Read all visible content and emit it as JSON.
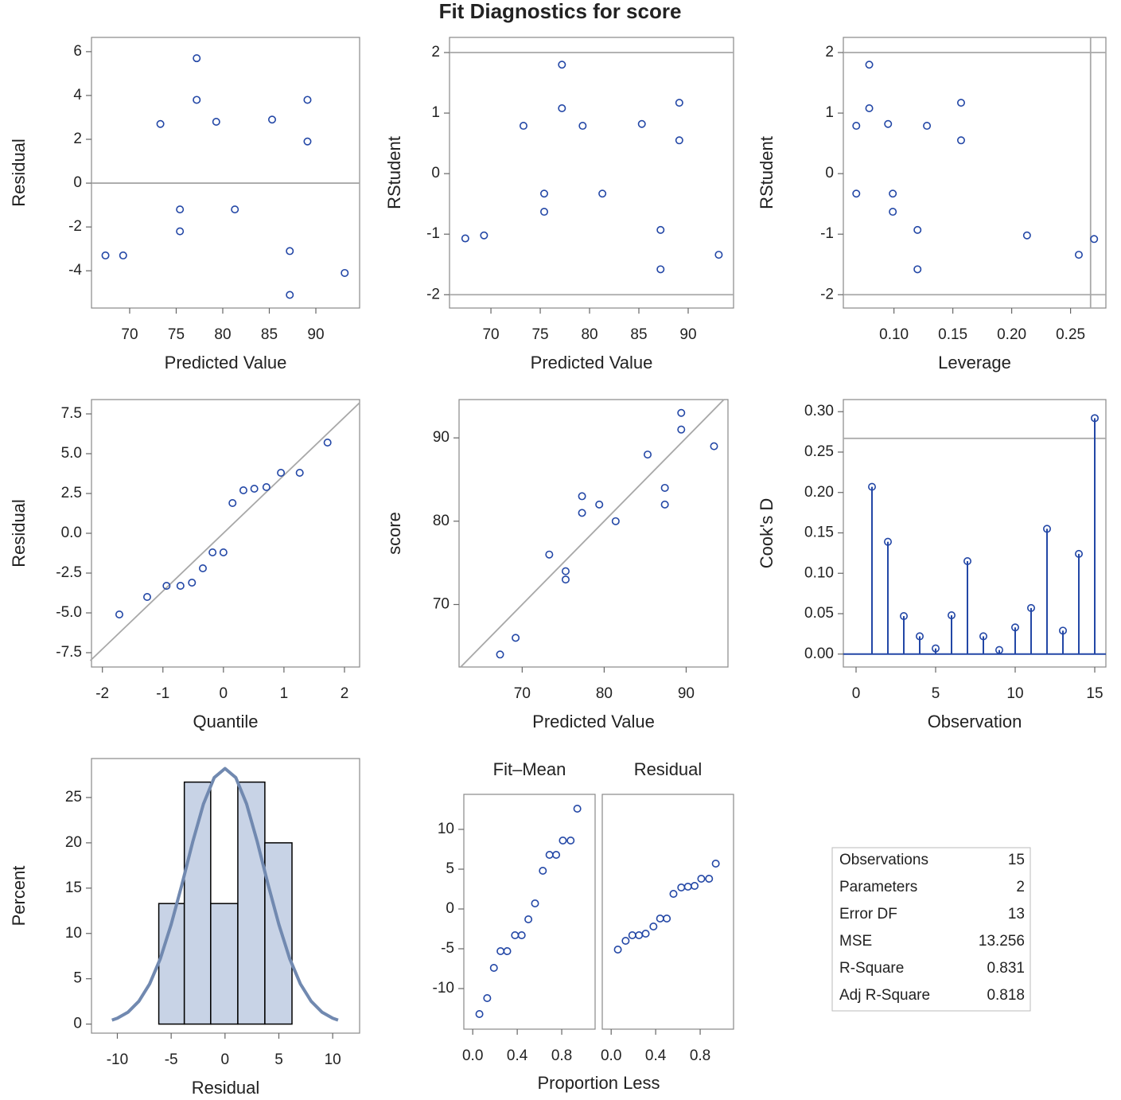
{
  "title": "Fit Diagnostics for score",
  "chart_data": [
    {
      "type": "scatter",
      "x_label": "Predicted Value",
      "y_label": "Residual",
      "x": [
        67.4,
        69.3,
        73.3,
        75.4,
        75.4,
        77.2,
        77.2,
        79.3,
        81.3,
        85.3,
        87.2,
        87.2,
        89.1,
        89.1,
        93.1
      ],
      "y": [
        -3.3,
        -3.3,
        2.7,
        -1.2,
        -2.2,
        5.7,
        3.8,
        2.8,
        -1.2,
        2.9,
        -3.1,
        -5.1,
        3.8,
        1.9,
        -4.1
      ],
      "xlim": [
        65.9,
        94.7
      ],
      "ylim": [
        -5.7,
        6.65
      ],
      "xticks": [
        70,
        75,
        80,
        85,
        90
      ],
      "yticks": [
        -4,
        -2,
        0,
        2,
        4,
        6
      ],
      "reference_lines": {
        "y": [
          0
        ]
      },
      "color": "#2347a6"
    },
    {
      "type": "scatter",
      "x_label": "Predicted Value",
      "y_label": "RStudent",
      "x": [
        67.4,
        69.3,
        73.3,
        75.4,
        75.4,
        77.2,
        77.2,
        79.3,
        81.3,
        85.3,
        87.2,
        87.2,
        89.1,
        89.1,
        93.1
      ],
      "y": [
        -1.07,
        -1.02,
        0.79,
        -0.33,
        -0.63,
        1.8,
        1.08,
        0.79,
        -0.33,
        0.82,
        -0.93,
        -1.58,
        1.17,
        0.55,
        -1.34
      ],
      "xlim": [
        65.8,
        94.6
      ],
      "ylim": [
        -2.22,
        2.25
      ],
      "xticks": [
        70,
        75,
        80,
        85,
        90
      ],
      "yticks": [
        -2,
        -1,
        0,
        1,
        2
      ],
      "reference_lines": {
        "y": [
          -2,
          2
        ]
      },
      "color": "#2347a6"
    },
    {
      "type": "scatter",
      "x_label": "Leverage",
      "y_label": "RStudent",
      "x": [
        0.068,
        0.068,
        0.079,
        0.079,
        0.095,
        0.099,
        0.099,
        0.12,
        0.12,
        0.128,
        0.157,
        0.157,
        0.213,
        0.257,
        0.27
      ],
      "y": [
        0.79,
        -0.33,
        1.8,
        1.08,
        0.82,
        -0.33,
        -0.63,
        -0.93,
        -1.58,
        0.79,
        1.17,
        0.55,
        -1.02,
        -1.34,
        -1.08
      ],
      "xlim": [
        0.057,
        0.28
      ],
      "ylim": [
        -2.22,
        2.25
      ],
      "xticks": [
        {
          "value": 0.1,
          "label": "0.10"
        },
        0.15,
        {
          "value": 0.2,
          "label": "0.20"
        },
        0.25
      ],
      "yticks": [
        -2,
        -1,
        0,
        1,
        2
      ],
      "reference_lines": {
        "y": [
          -2,
          2
        ],
        "x": [
          0.267
        ]
      },
      "color": "#2347a6"
    },
    {
      "type": "scatter",
      "x_label": "Quantile",
      "y_label": "Residual",
      "x": [
        -1.72,
        -1.26,
        -0.94,
        -0.71,
        -0.52,
        -0.34,
        -0.18,
        0.0,
        0.15,
        0.33,
        0.51,
        0.71,
        0.95,
        1.26,
        1.72
      ],
      "y": [
        -5.1,
        -4.0,
        -3.3,
        -3.3,
        -3.1,
        -2.2,
        -1.2,
        -1.2,
        1.9,
        2.7,
        2.8,
        2.9,
        3.8,
        3.8,
        5.7
      ],
      "xlim": [
        -2.18,
        2.25
      ],
      "ylim": [
        -8.4,
        8.4
      ],
      "xticks": [
        -2,
        -1,
        0,
        1,
        2
      ],
      "yticks": [
        {
          "value": -7.5,
          "label": "-7.5"
        },
        {
          "value": -5,
          "label": "-5.0"
        },
        -2.5,
        {
          "value": 0,
          "label": "0.0"
        },
        2.5,
        {
          "value": 5,
          "label": "5.0"
        },
        7.5
      ],
      "reference_line": {
        "x": [
          -2.2,
          2.25
        ],
        "y": [
          -8.0,
          8.2
        ]
      },
      "color": "#2347a6"
    },
    {
      "type": "scatter",
      "x_label": "Predicted Value",
      "y_label": "score",
      "x": [
        67.3,
        69.2,
        73.3,
        75.3,
        75.3,
        77.3,
        77.3,
        79.4,
        81.4,
        85.3,
        87.4,
        87.4,
        89.4,
        89.4,
        93.4
      ],
      "y": [
        64,
        66,
        76,
        74,
        73,
        83,
        81,
        82,
        80,
        88,
        84,
        82,
        93,
        91,
        89
      ],
      "xlim": [
        62.3,
        95.1
      ],
      "ylim": [
        62.5,
        94.6
      ],
      "xticks": [
        70,
        80,
        90
      ],
      "yticks": [
        70,
        80,
        90
      ],
      "reference_line": {
        "x": [
          62.5,
          94.6
        ],
        "y": [
          62.5,
          94.6
        ]
      },
      "color": "#2347a6"
    },
    {
      "type": "needle",
      "x_label": "Observation",
      "y_label": "Cook's D",
      "x": [
        1,
        2,
        3,
        4,
        5,
        6,
        7,
        8,
        9,
        10,
        11,
        12,
        13,
        14,
        15
      ],
      "y": [
        0.207,
        0.139,
        0.047,
        0.022,
        0.007,
        0.048,
        0.115,
        0.022,
        0.005,
        0.033,
        0.057,
        0.155,
        0.029,
        0.124,
        0.292
      ],
      "xlim": [
        -0.8,
        15.7
      ],
      "ylim": [
        -0.016,
        0.315
      ],
      "xticks": [
        0,
        5,
        10,
        15
      ],
      "yticks": [
        {
          "value": 0,
          "label": "0.00"
        },
        0.05,
        {
          "value": 0.1,
          "label": "0.10"
        },
        0.15,
        {
          "value": 0.2,
          "label": "0.20"
        },
        0.25,
        {
          "value": 0.3,
          "label": "0.30"
        }
      ],
      "reference_lines": {
        "y": [
          0.267
        ]
      },
      "color": "#2347a6"
    },
    {
      "type": "histogram",
      "x_label": "Residual",
      "y_label": "Percent",
      "bins": [
        -6.15,
        -3.78,
        -1.33,
        1.19,
        3.7,
        6.22
      ],
      "values": [
        13.3,
        26.7,
        13.3,
        26.7,
        20.0
      ],
      "curve": {
        "x": [
          -10.5,
          -10,
          -9,
          -8,
          -7,
          -6,
          -5,
          -4,
          -3,
          -2,
          -1,
          0,
          1,
          2,
          3,
          4,
          5,
          6,
          7,
          8,
          9,
          10,
          10.5
        ],
        "y": [
          0.44,
          0.65,
          1.32,
          2.52,
          4.43,
          7.24,
          11.0,
          15.4,
          20.1,
          24.3,
          27.2,
          28.2,
          27.2,
          24.3,
          20.1,
          15.4,
          11.0,
          7.24,
          4.43,
          2.52,
          1.32,
          0.65,
          0.44
        ]
      },
      "xlim": [
        -12.4,
        12.5
      ],
      "ylim": [
        -1,
        29.3
      ],
      "xticks": [
        -10,
        -5,
        0,
        5,
        10
      ],
      "yticks": [
        0,
        5,
        10,
        15,
        20,
        25
      ],
      "color": "#c8d3e6",
      "curve_color": "#7189b0"
    },
    {
      "type": "spread",
      "x_label": "Proportion Less",
      "panels": [
        {
          "title": "Fit–Mean",
          "x": [
            0.06,
            0.13,
            0.19,
            0.25,
            0.31,
            0.38,
            0.44,
            0.5,
            0.56,
            0.63,
            0.69,
            0.75,
            0.81,
            0.88,
            0.94
          ],
          "y": [
            -13.2,
            -11.2,
            -7.4,
            -5.3,
            -5.3,
            -3.3,
            -3.3,
            -1.3,
            0.7,
            4.8,
            6.8,
            6.8,
            8.6,
            8.6,
            12.6
          ]
        },
        {
          "title": "Residual",
          "x": [
            0.06,
            0.13,
            0.19,
            0.25,
            0.31,
            0.38,
            0.44,
            0.5,
            0.56,
            0.63,
            0.69,
            0.75,
            0.81,
            0.88,
            0.94
          ],
          "y": [
            -5.1,
            -4.0,
            -3.3,
            -3.3,
            -3.1,
            -2.2,
            -1.2,
            -1.2,
            1.9,
            2.7,
            2.8,
            2.9,
            3.8,
            3.8,
            5.7
          ]
        }
      ],
      "xlim": [
        -0.08,
        1.1
      ],
      "ylim": [
        -15.1,
        14.4
      ],
      "xticks": [
        {
          "value": 0,
          "label": "0.0"
        },
        0.4,
        0.8
      ],
      "yticks": [
        -10,
        -5,
        0,
        5,
        10
      ],
      "color": "#2347a6"
    }
  ],
  "fit_statistics": {
    "rows": [
      [
        "Observations",
        15
      ],
      [
        "Parameters",
        2
      ],
      [
        "Error DF",
        13
      ],
      [
        "MSE",
        13.256
      ],
      [
        "R-Square",
        0.831
      ],
      [
        "Adj R-Square",
        0.818
      ]
    ]
  }
}
